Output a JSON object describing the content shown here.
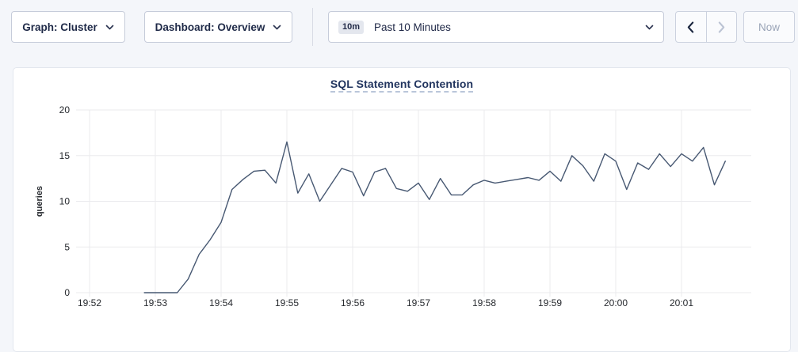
{
  "toolbar": {
    "graph_dropdown_label": "Graph: Cluster",
    "dashboard_dropdown_label": "Dashboard: Overview",
    "time_range_badge": "10m",
    "time_range_label": "Past 10 Minutes",
    "now_button_label": "Now"
  },
  "chart": {
    "title": "SQL Statement Contention"
  },
  "chart_data": {
    "type": "line",
    "title": "SQL Statement Contention",
    "xlabel": "",
    "ylabel": "queries",
    "ylim": [
      0,
      20
    ],
    "y_ticks": [
      0,
      5,
      10,
      15,
      20
    ],
    "x_ticks": [
      "19:52",
      "19:53",
      "19:54",
      "19:55",
      "19:56",
      "19:57",
      "19:58",
      "19:59",
      "20:00",
      "20:01"
    ],
    "grid": true,
    "legend": "none",
    "line_color": "#475872",
    "series": [
      {
        "name": "SQL Statement Contention",
        "unit": "queries",
        "start_time": "19:52:50",
        "interval_seconds": 10,
        "values": [
          0,
          0,
          0,
          0,
          1.5,
          4.2,
          5.8,
          7.7,
          11.3,
          12.4,
          13.3,
          13.4,
          12.0,
          16.5,
          10.9,
          13.0,
          10.0,
          11.8,
          13.6,
          13.2,
          10.6,
          13.2,
          13.6,
          11.4,
          11.1,
          12.0,
          10.2,
          12.5,
          10.7,
          10.7,
          11.8,
          12.3,
          12.0,
          12.2,
          12.4,
          12.6,
          12.3,
          13.3,
          12.2,
          15.0,
          13.9,
          12.2,
          15.2,
          14.4,
          11.3,
          14.2,
          13.5,
          15.2,
          13.8,
          15.2,
          14.4,
          15.9,
          11.8,
          14.4
        ]
      }
    ]
  },
  "colors": {
    "page_bg": "#f4f6fa",
    "card_bg": "#ffffff",
    "toolbar_text": "#1f2a48",
    "title_text": "#22355f",
    "line": "#475872",
    "disabled_text": "#9ba5b8",
    "gridline": "#ebebee"
  }
}
